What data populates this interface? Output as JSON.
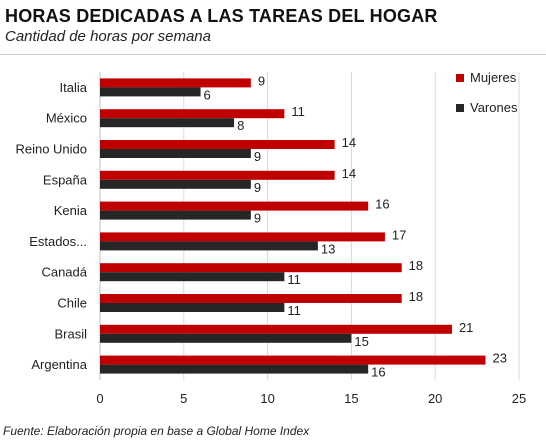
{
  "header": {
    "title": "HORAS DEDICADAS A LAS TAREAS DEL HOGAR",
    "subtitle": "Cantidad de horas por semana"
  },
  "footer": {
    "source": "Fuente: Elaboración propia en base a Global Home Index"
  },
  "colors": {
    "mujeres": "#c00000",
    "varones": "#262626",
    "gridline": "#d9d9d9"
  },
  "chart_data": {
    "type": "bar",
    "orientation": "horizontal",
    "categories": [
      "Italia",
      "México",
      "Reino Unido",
      "España",
      "Kenia",
      "Estados...",
      "Canadá",
      "Chile",
      "Brasil",
      "Argentina"
    ],
    "series": [
      {
        "name": "Mujeres",
        "values": [
          9,
          11,
          14,
          14,
          16,
          17,
          18,
          18,
          21,
          23
        ]
      },
      {
        "name": "Varones",
        "values": [
          6,
          8,
          9,
          9,
          9,
          13,
          11,
          11,
          15,
          16
        ]
      }
    ],
    "xlim": [
      0,
      25
    ],
    "xticks": [
      0,
      5,
      10,
      15,
      20,
      25
    ],
    "grid": true,
    "legend_position": "top-right"
  }
}
